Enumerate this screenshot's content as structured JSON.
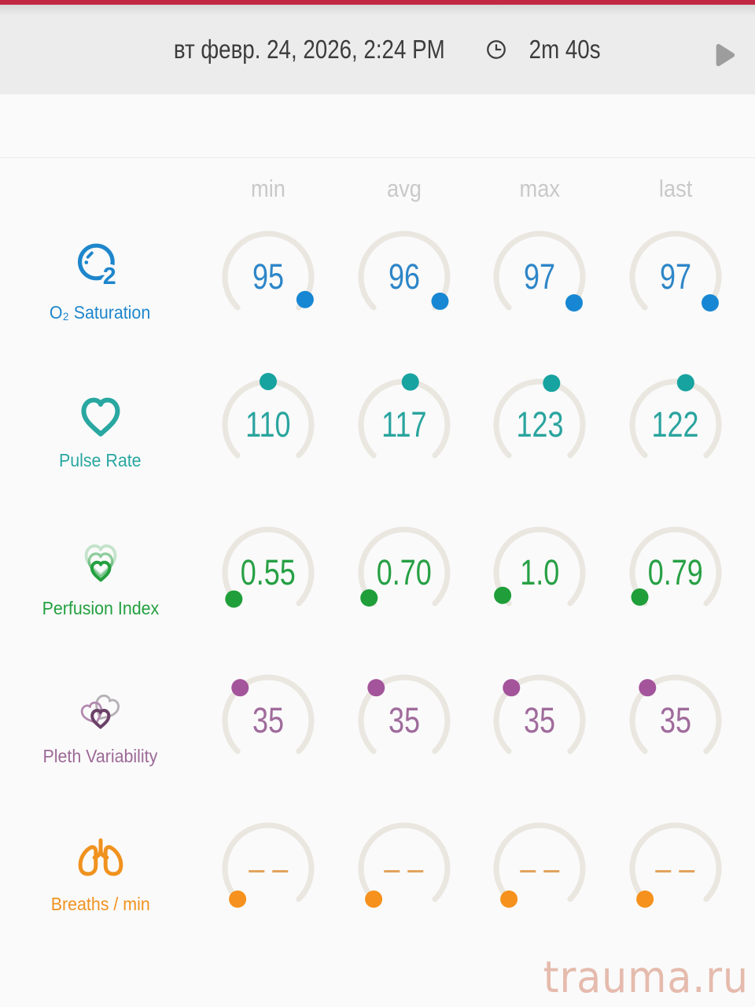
{
  "colors": {
    "top_bar": "#c22742",
    "header_bg": "#ececec",
    "page_bg": "#fafafa",
    "track": "#eae6e0",
    "header_text": "#3c3c3c",
    "column_header_text": "#c9c9c9",
    "play_icon": "#9d9d9d",
    "watermark": "#e5bbad"
  },
  "header": {
    "datetime": "вт февр. 24, 2026, 2:24 PM",
    "duration": "2m 40s"
  },
  "columns": [
    "min",
    "avg",
    "max",
    "last"
  ],
  "rows": [
    {
      "label": "O₂ Saturation",
      "icon": "o2-bubble",
      "accent": "#1e86cc",
      "dot_color": "#1787d3",
      "value_color": "#2e86c8",
      "cells": [
        {
          "value": "95",
          "fraction": 0.95
        },
        {
          "value": "96",
          "fraction": 0.96
        },
        {
          "value": "97",
          "fraction": 0.97
        },
        {
          "value": "97",
          "fraction": 0.97
        }
      ]
    },
    {
      "label": "Pulse Rate",
      "icon": "heart-outline",
      "accent": "#29a7a1",
      "dot_color": "#17a3a0",
      "value_color": "#2aa49e",
      "cells": [
        {
          "value": "110",
          "fraction": 0.5
        },
        {
          "value": "117",
          "fraction": 0.53
        },
        {
          "value": "123",
          "fraction": 0.56
        },
        {
          "value": "122",
          "fraction": 0.55
        }
      ]
    },
    {
      "label": "Perfusion Index",
      "icon": "nested-hearts",
      "accent": "#23a03f",
      "dot_color": "#1f9e39",
      "value_color": "#27a044",
      "cells": [
        {
          "value": "0.55",
          "fraction": 0.028
        },
        {
          "value": "0.70",
          "fraction": 0.035
        },
        {
          "value": "1.0",
          "fraction": 0.05
        },
        {
          "value": "0.79",
          "fraction": 0.04
        }
      ]
    },
    {
      "label": "Pleth Variability",
      "icon": "overlapping-hearts",
      "accent": "#9d6997",
      "dot_color": "#a4549b",
      "value_color": "#a06b9c",
      "icon_colors": [
        "#b7b1b7",
        "#b287ae",
        "#6a4167"
      ],
      "cells": [
        {
          "value": "35",
          "fraction": 0.35
        },
        {
          "value": "35",
          "fraction": 0.35
        },
        {
          "value": "35",
          "fraction": 0.35
        },
        {
          "value": "35",
          "fraction": 0.35
        }
      ]
    },
    {
      "label": "Breaths / min",
      "icon": "lungs",
      "accent": "#f0921f",
      "dot_color": "#f6911d",
      "value_color": "#e2a35c",
      "cells": [
        {
          "value": "– –",
          "fraction": 0
        },
        {
          "value": "– –",
          "fraction": 0
        },
        {
          "value": "– –",
          "fraction": 0
        },
        {
          "value": "– –",
          "fraction": 0
        }
      ]
    }
  ],
  "watermark": "trauma.ru"
}
